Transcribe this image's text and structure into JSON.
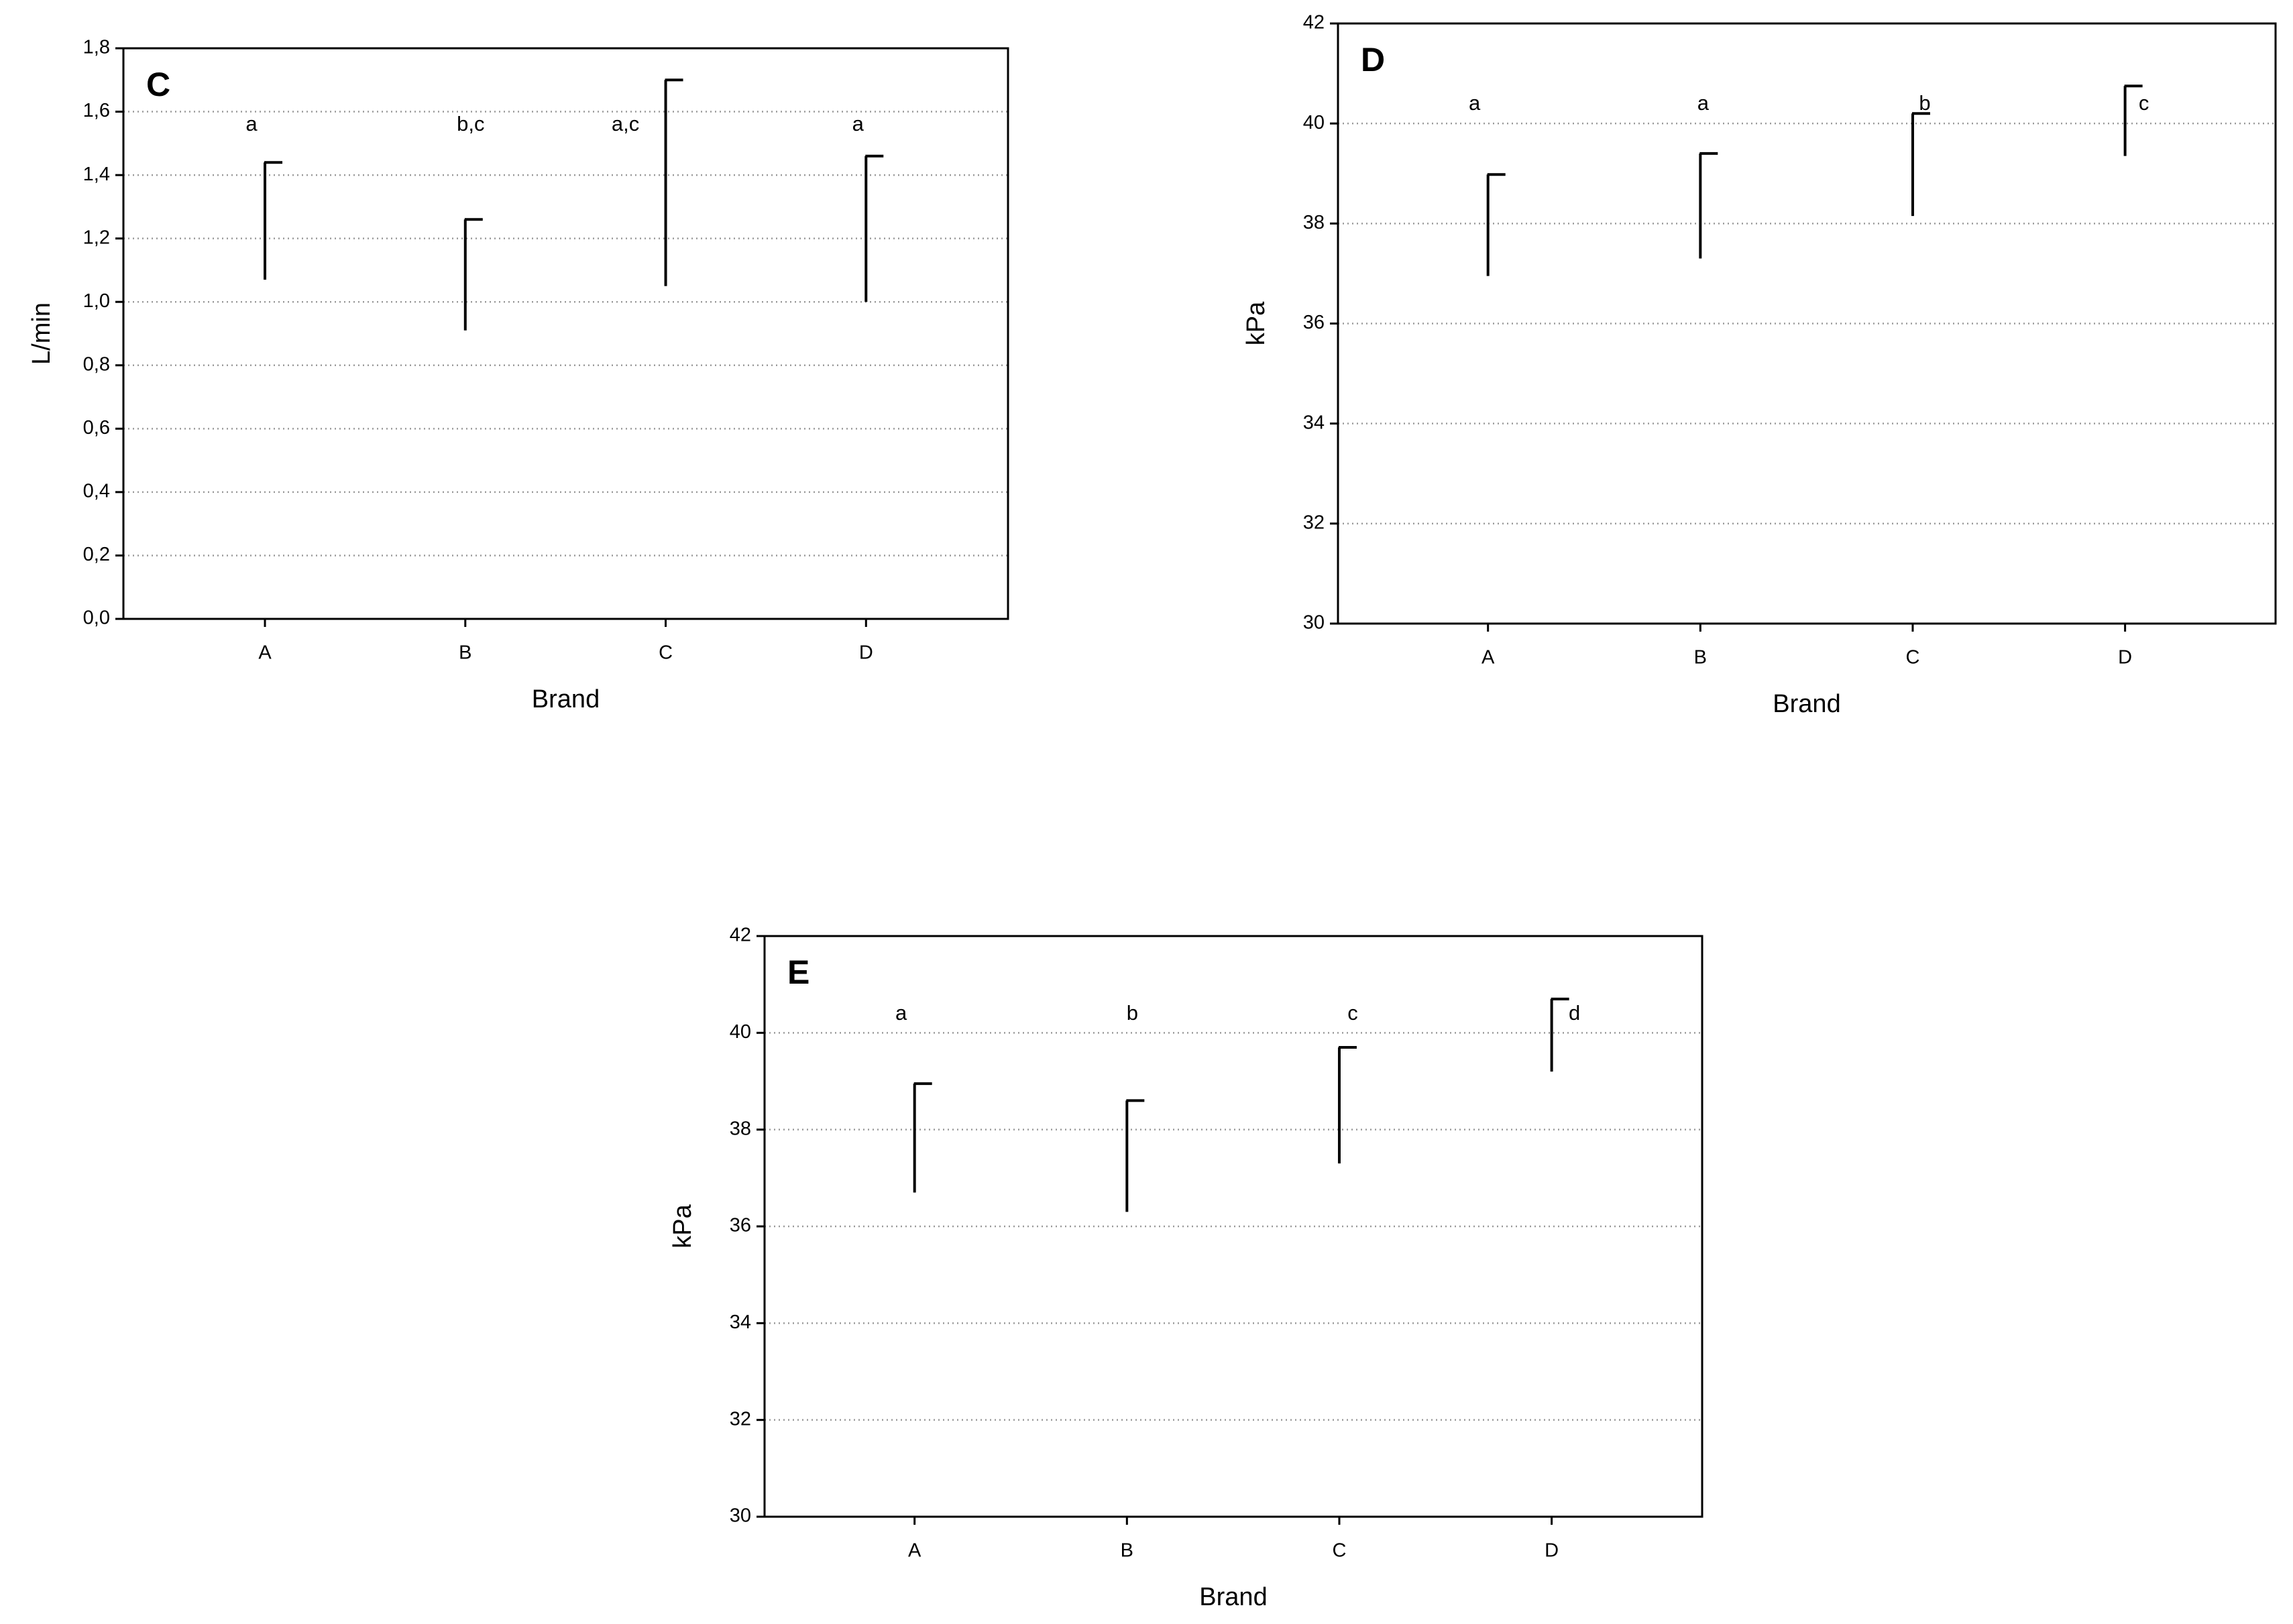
{
  "chart_data": [
    {
      "type": "errorbar",
      "title": "C",
      "xlabel": "Brand",
      "ylabel": "L/min",
      "categories": [
        "A",
        "B",
        "C",
        "D"
      ],
      "values": [
        1.07,
        0.91,
        1.05,
        1.0
      ],
      "errors": [
        0.37,
        0.35,
        0.65,
        0.46
      ],
      "annotations": [
        "a",
        "b,c",
        "a,c",
        "a"
      ],
      "color": "#000000",
      "ylim": [
        0,
        1.8
      ],
      "yticks": [
        {
          "value": 0,
          "label": "0,0"
        },
        {
          "value": 0.2,
          "label": "0,2"
        },
        {
          "value": 0.4,
          "label": "0,4"
        },
        {
          "value": 0.6,
          "label": "0,6"
        },
        {
          "value": 0.8,
          "label": "0,8"
        },
        {
          "value": 1.0,
          "label": "1,0"
        },
        {
          "value": 1.2,
          "label": "1,2"
        },
        {
          "value": 1.4,
          "label": "1,4"
        },
        {
          "value": 1.6,
          "label": "1,6"
        },
        {
          "value": 1.8,
          "label": "1,8"
        }
      ],
      "grid": true
    },
    {
      "type": "errorbar",
      "title": "D",
      "xlabel": "Brand",
      "ylabel": "kPa",
      "categories": [
        "A",
        "B",
        "C",
        "D"
      ],
      "values": [
        36.95,
        37.3,
        38.15,
        39.35
      ],
      "errors": [
        2.03,
        2.1,
        2.05,
        1.4
      ],
      "annotations": [
        "a",
        "a",
        "b",
        "c"
      ],
      "color": "#000000",
      "ylim": [
        30,
        42
      ],
      "yticks": [
        30,
        32,
        34,
        36,
        38,
        40,
        42
      ],
      "grid": true
    },
    {
      "type": "errorbar",
      "title": "E",
      "xlabel": "Brand",
      "ylabel": "kPa",
      "categories": [
        "A",
        "B",
        "C",
        "D"
      ],
      "values": [
        36.7,
        36.3,
        37.3,
        39.2
      ],
      "errors": [
        2.25,
        2.3,
        2.4,
        1.5
      ],
      "annotations": [
        "a",
        "b",
        "c",
        "d"
      ],
      "color": "#000000",
      "ylim": [
        30,
        42
      ],
      "yticks": [
        30,
        32,
        34,
        36,
        38,
        40,
        42
      ],
      "grid": true
    }
  ]
}
